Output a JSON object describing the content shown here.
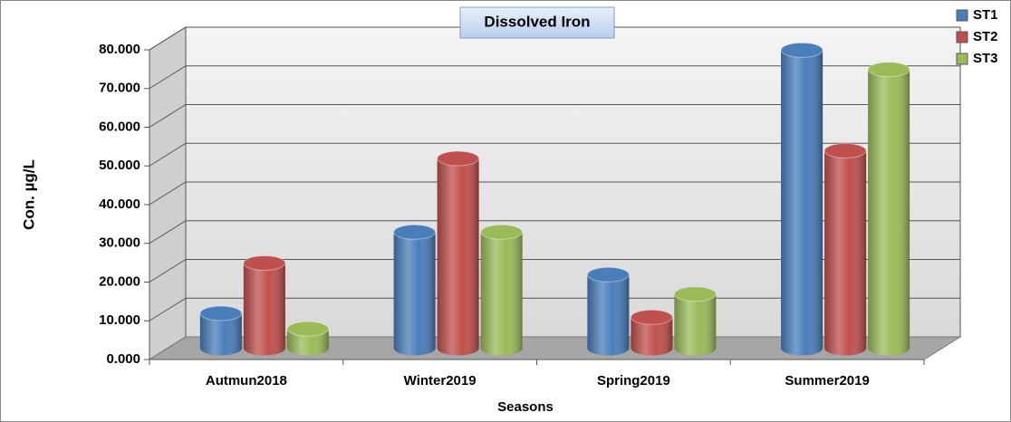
{
  "chart_data": {
    "type": "bar",
    "title": "Dissolved Iron",
    "x_label": "Seasons",
    "y_label": "Con.  µg/L",
    "categories": [
      "Autmun2018",
      "Winter2019",
      "Spring2019",
      "Summer2019"
    ],
    "series": [
      {
        "name": "ST1",
        "color": "#4a7ebb",
        "values": [
          9,
          30,
          19,
          77
        ]
      },
      {
        "name": "ST2",
        "color": "#c0504d",
        "values": [
          22,
          49,
          8,
          51
        ]
      },
      {
        "name": "ST3",
        "color": "#9bbb59",
        "values": [
          5,
          30,
          14,
          72
        ]
      }
    ],
    "ylim": [
      0,
      80
    ],
    "yticks": [
      {
        "value": 0,
        "label": "0.000"
      },
      {
        "value": 10,
        "label": "10.000"
      },
      {
        "value": 20,
        "label": "20.000"
      },
      {
        "value": 30,
        "label": "30.000"
      },
      {
        "value": 40,
        "label": "40.000"
      },
      {
        "value": 50,
        "label": "50.000"
      },
      {
        "value": 60,
        "label": "60.000"
      },
      {
        "value": 70,
        "label": "70.000"
      },
      {
        "value": 80,
        "label": "80.000"
      }
    ],
    "grid": true,
    "legend": "top-right"
  }
}
